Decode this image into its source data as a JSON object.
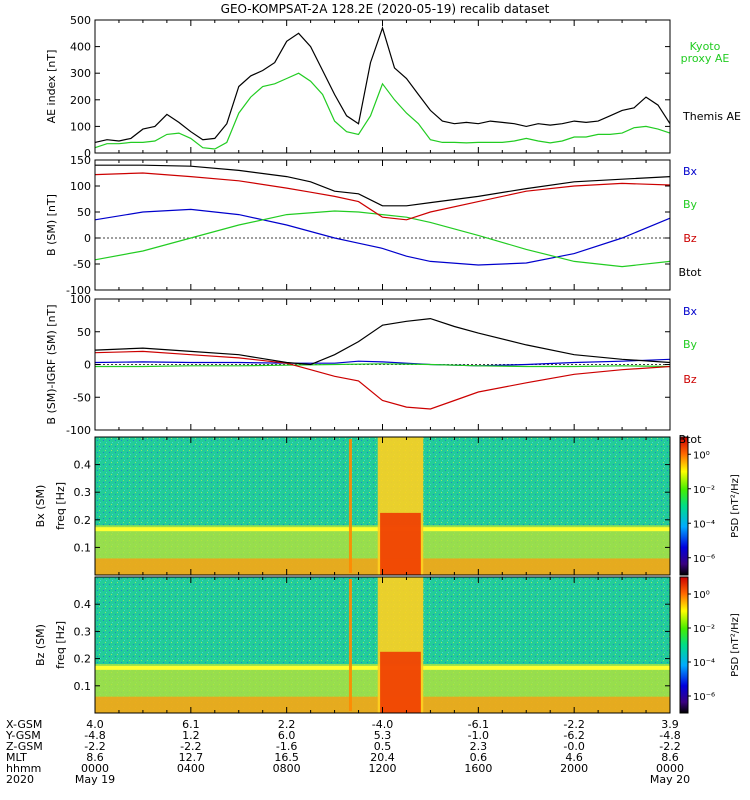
{
  "chart_data": {
    "title": "GEO-KOMPSAT-2A 128.2E (2020-05-19) recalib dataset",
    "type": "line",
    "panels": [
      {
        "id": "ae",
        "type": "line",
        "ylabel": "AE index [nT]",
        "ylim": [
          0,
          500
        ],
        "yticks": [
          0,
          100,
          200,
          300,
          400,
          500
        ],
        "series": [
          {
            "name": "Kyoto proxy AE",
            "color": "#22cc22",
            "x": [
              0,
              0.5,
              1,
              1.5,
              2,
              2.5,
              3,
              3.5,
              4,
              4.5,
              5,
              5.5,
              6,
              6.5,
              7,
              7.5,
              8,
              8.5,
              9,
              9.5,
              10,
              10.5,
              11,
              11.5,
              12,
              12.5,
              13,
              13.5,
              14,
              14.5,
              15,
              15.5,
              16,
              16.5,
              17,
              17.5,
              18,
              18.5,
              19,
              19.5,
              20,
              20.5,
              21,
              21.5,
              22,
              22.5,
              23,
              23.5,
              24
            ],
            "values": [
              20,
              35,
              35,
              40,
              40,
              45,
              70,
              75,
              55,
              20,
              15,
              40,
              150,
              210,
              250,
              260,
              280,
              300,
              270,
              220,
              120,
              80,
              70,
              140,
              260,
              200,
              150,
              110,
              50,
              40,
              40,
              38,
              40,
              40,
              40,
              45,
              55,
              45,
              38,
              45,
              60,
              60,
              70,
              70,
              75,
              95,
              100,
              90,
              75
            ]
          },
          {
            "name": "Themis AE",
            "color": "#000000",
            "x": [
              0,
              0.5,
              1,
              1.5,
              2,
              2.5,
              3,
              3.5,
              4,
              4.5,
              5,
              5.5,
              6,
              6.5,
              7,
              7.5,
              8,
              8.5,
              9,
              9.5,
              10,
              10.5,
              11,
              11.5,
              12,
              12.5,
              13,
              13.5,
              14,
              14.5,
              15,
              15.5,
              16,
              16.5,
              17,
              17.5,
              18,
              18.5,
              19,
              19.5,
              20,
              20.5,
              21,
              21.5,
              22,
              22.5,
              23,
              23.5,
              24
            ],
            "values": [
              40,
              50,
              45,
              55,
              90,
              100,
              145,
              115,
              80,
              50,
              55,
              110,
              250,
              290,
              310,
              340,
              420,
              450,
              400,
              310,
              220,
              140,
              110,
              340,
              470,
              320,
              280,
              220,
              160,
              120,
              110,
              115,
              110,
              120,
              115,
              110,
              100,
              110,
              105,
              110,
              120,
              115,
              120,
              140,
              160,
              170,
              210,
              180,
              110
            ]
          }
        ],
        "legend": [
          "Kyoto proxy AE",
          "Themis AE"
        ]
      },
      {
        "id": "bsm",
        "type": "line",
        "ylabel": "B (SM) [nT]",
        "ylim": [
          -100,
          150
        ],
        "yticks": [
          -100,
          -50,
          0,
          50,
          100,
          150
        ],
        "series": [
          {
            "name": "Bx",
            "color": "#0000cc",
            "x": [
              0,
              2,
              4,
              6,
              8,
              10,
              11,
              12,
              13,
              14,
              16,
              18,
              20,
              22,
              24
            ],
            "values": [
              35,
              50,
              55,
              45,
              25,
              0,
              -10,
              -20,
              -35,
              -45,
              -52,
              -48,
              -30,
              0,
              38
            ]
          },
          {
            "name": "By",
            "color": "#22cc22",
            "x": [
              0,
              2,
              4,
              6,
              8,
              10,
              11,
              12,
              13,
              14,
              16,
              18,
              20,
              22,
              24
            ],
            "values": [
              -42,
              -25,
              0,
              25,
              45,
              52,
              50,
              45,
              40,
              30,
              5,
              -22,
              -45,
              -55,
              -45
            ]
          },
          {
            "name": "Bz",
            "color": "#cc0000",
            "x": [
              0,
              2,
              4,
              6,
              8,
              9,
              10,
              11,
              12,
              13,
              14,
              16,
              18,
              20,
              22,
              24
            ],
            "values": [
              122,
              125,
              118,
              110,
              96,
              88,
              80,
              70,
              40,
              35,
              50,
              70,
              90,
              100,
              105,
              102
            ]
          },
          {
            "name": "Btot",
            "color": "#000000",
            "x": [
              0,
              2,
              4,
              6,
              8,
              9,
              10,
              11,
              12,
              13,
              14,
              16,
              18,
              20,
              22,
              24
            ],
            "values": [
              140,
              140,
              138,
              130,
              118,
              108,
              90,
              85,
              62,
              62,
              68,
              80,
              95,
              108,
              113,
              118
            ]
          }
        ],
        "legend": [
          "Bx",
          "By",
          "Bz",
          "Btot"
        ]
      },
      {
        "id": "bigrf",
        "type": "line",
        "ylabel": "B (SM)-IGRF (SM) [nT]",
        "ylim": [
          -100,
          100
        ],
        "yticks": [
          -100,
          -50,
          0,
          50,
          100
        ],
        "series": [
          {
            "name": "Bx",
            "color": "#0000cc",
            "x": [
              0,
              2,
              4,
              6,
              8,
              10,
              11,
              12,
              13,
              14,
              16,
              18,
              20,
              22,
              24
            ],
            "values": [
              3,
              4,
              3,
              3,
              2,
              2,
              5,
              4,
              2,
              0,
              -2,
              0,
              3,
              5,
              8
            ]
          },
          {
            "name": "By",
            "color": "#22cc22",
            "x": [
              0,
              2,
              4,
              6,
              8,
              10,
              12,
              14,
              16,
              18,
              20,
              22,
              24
            ],
            "values": [
              -3,
              -3,
              -2,
              -2,
              -1,
              0,
              1,
              0,
              -2,
              -3,
              -3,
              -2,
              -3
            ]
          },
          {
            "name": "Bz",
            "color": "#cc0000",
            "x": [
              0,
              2,
              4,
              6,
              8,
              9,
              10,
              11,
              12,
              13,
              14,
              15,
              16,
              18,
              20,
              22,
              24
            ],
            "values": [
              18,
              20,
              15,
              10,
              2,
              -8,
              -18,
              -25,
              -55,
              -65,
              -68,
              -55,
              -42,
              -28,
              -15,
              -8,
              -3
            ]
          },
          {
            "name": "Btot",
            "color": "#000000",
            "x": [
              0,
              2,
              4,
              6,
              8,
              9,
              10,
              11,
              12,
              13,
              14,
              15,
              16,
              18,
              20,
              22,
              24
            ],
            "values": [
              22,
              25,
              20,
              15,
              3,
              0,
              15,
              35,
              60,
              66,
              70,
              58,
              48,
              30,
              15,
              8,
              3
            ]
          }
        ],
        "legend": [
          "Bx",
          "By",
          "Bz",
          "Btot"
        ]
      },
      {
        "id": "bx_spec",
        "type": "heatmap",
        "ylabel": "Bx (SM)",
        "ylabel2": "freq [Hz]",
        "ylim": [
          0,
          0.5
        ],
        "yticks": [
          0.1,
          0.2,
          0.3,
          0.4
        ],
        "ytick_labels": [
          "0.1",
          "0.2",
          "0.3",
          "0.4"
        ]
      },
      {
        "id": "bz_spec",
        "type": "heatmap",
        "ylabel": "Bz (SM)",
        "ylabel2": "freq [Hz]",
        "ylim": [
          0,
          0.5
        ],
        "yticks": [
          0.1,
          0.2,
          0.3,
          0.4
        ],
        "ytick_labels": [
          "0.1",
          "0.2",
          "0.3",
          "0.4"
        ]
      }
    ],
    "colorbar": {
      "label": "PSD [nT²/Hz]",
      "ticks": [
        "10⁰",
        "10⁻²",
        "10⁻⁴",
        "10⁻⁶"
      ],
      "tick_values": [
        0,
        -2,
        -4,
        -6
      ]
    },
    "time_axis": {
      "xlim": [
        0,
        24
      ],
      "row_labels": [
        "X-GSM",
        "Y-GSM",
        "Z-GSM",
        "MLT",
        "hhmm",
        "2020"
      ],
      "columns": [
        {
          "t": 0,
          "values": [
            "4.0",
            "-4.8",
            "-2.2",
            "8.6",
            "0000",
            "May 19"
          ]
        },
        {
          "t": 4,
          "values": [
            "6.1",
            "1.2",
            "-2.2",
            "12.7",
            "0400",
            ""
          ]
        },
        {
          "t": 8,
          "values": [
            "2.2",
            "6.0",
            "-1.6",
            "16.5",
            "0800",
            ""
          ]
        },
        {
          "t": 12,
          "values": [
            "-4.0",
            "5.3",
            "0.5",
            "20.4",
            "1200",
            ""
          ]
        },
        {
          "t": 16,
          "values": [
            "-6.1",
            "-1.0",
            "2.3",
            "0.6",
            "1600",
            ""
          ]
        },
        {
          "t": 20,
          "values": [
            "-2.2",
            "-6.2",
            "-0.0",
            "4.6",
            "2000",
            ""
          ]
        },
        {
          "t": 24,
          "values": [
            "3.9",
            "-4.8",
            "-2.2",
            "8.6",
            "0000",
            "May 20"
          ]
        }
      ]
    }
  }
}
